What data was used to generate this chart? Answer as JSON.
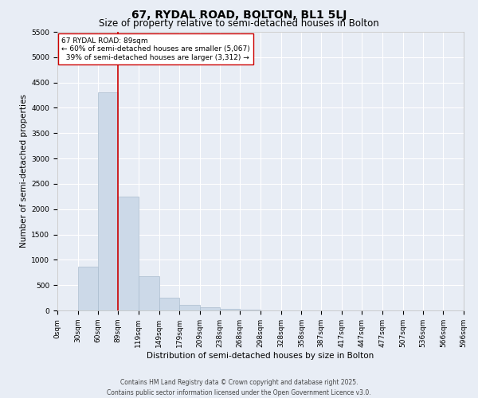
{
  "title": "67, RYDAL ROAD, BOLTON, BL1 5LJ",
  "subtitle": "Size of property relative to semi-detached houses in Bolton",
  "xlabel": "Distribution of semi-detached houses by size in Bolton",
  "ylabel": "Number of semi-detached properties",
  "bin_labels": [
    "0sqm",
    "30sqm",
    "60sqm",
    "89sqm",
    "119sqm",
    "149sqm",
    "179sqm",
    "209sqm",
    "238sqm",
    "268sqm",
    "298sqm",
    "328sqm",
    "358sqm",
    "387sqm",
    "417sqm",
    "447sqm",
    "477sqm",
    "507sqm",
    "536sqm",
    "566sqm",
    "596sqm"
  ],
  "bin_edges": [
    0,
    30,
    60,
    89,
    119,
    149,
    179,
    209,
    238,
    268,
    298,
    328,
    358,
    387,
    417,
    447,
    477,
    507,
    536,
    566,
    596
  ],
  "bar_heights": [
    5,
    860,
    4300,
    2250,
    670,
    250,
    110,
    60,
    30,
    10,
    5,
    0,
    0,
    0,
    0,
    0,
    0,
    0,
    0,
    0
  ],
  "bar_color": "#ccd9e8",
  "bar_edgecolor": "#aabcce",
  "property_size": 89,
  "vline_color": "#cc0000",
  "annotation_text": "67 RYDAL ROAD: 89sqm\n← 60% of semi-detached houses are smaller (5,067)\n  39% of semi-detached houses are larger (3,312) →",
  "annotation_box_color": "#ffffff",
  "annotation_border_color": "#cc0000",
  "ylim": [
    0,
    5500
  ],
  "yticks": [
    0,
    500,
    1000,
    1500,
    2000,
    2500,
    3000,
    3500,
    4000,
    4500,
    5000,
    5500
  ],
  "background_color": "#e8edf5",
  "plot_background": "#e8edf5",
  "grid_color": "#ffffff",
  "footer_line1": "Contains HM Land Registry data © Crown copyright and database right 2025.",
  "footer_line2": "Contains public sector information licensed under the Open Government Licence v3.0.",
  "title_fontsize": 10,
  "subtitle_fontsize": 8.5,
  "tick_fontsize": 6.5,
  "ylabel_fontsize": 7.5,
  "xlabel_fontsize": 7.5,
  "annotation_fontsize": 6.5,
  "footer_fontsize": 5.5
}
